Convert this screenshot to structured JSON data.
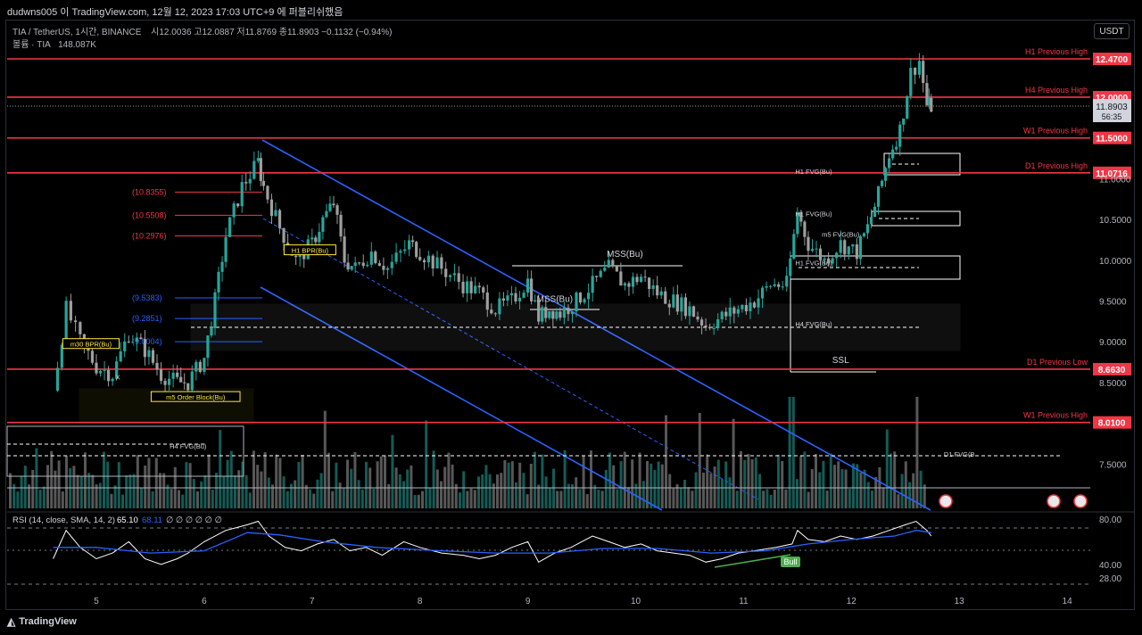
{
  "top_bar": {
    "text": "dudwns005 이 TradingView.com, 12월 12, 2023 17:03 UTC+9 에 퍼블리쉬했음"
  },
  "header": {
    "symbol_line": "TIA / TetherUS, 1시간, BINANCE",
    "ohlc": "시12.0036  고12.0887  저11.8769  종11.8903  −0.1132 (−0.94%)",
    "volume_label": "볼륨 · TIA",
    "volume_value": "148.087K"
  },
  "currency_button": "USDT",
  "footer": {
    "brand": "TradingView"
  },
  "colors": {
    "up": "#26a69a",
    "down": "#9e9e9e",
    "level": "#f23645",
    "channel": "#2962ff",
    "fvg": "#ffffff",
    "rsi": "#ffffff",
    "rsi_ma": "#2962ff",
    "label_yellow": "#ffeb3b"
  },
  "chart_data": [
    {
      "type": "candlestick",
      "title": "TIA / TetherUS, 1시간, BINANCE",
      "x_ticks": [
        "5",
        "6",
        "7",
        "8",
        "9",
        "10",
        "11",
        "12",
        "13",
        "14"
      ],
      "y_ticks": [
        "11.0000",
        "10.5000",
        "10.0000",
        "9.5000",
        "9.0000",
        "8.5000",
        "7.5000"
      ],
      "ylim": [
        7.0,
        12.7
      ],
      "last_price": "11.8903",
      "countdown": "56:35",
      "series": [
        {
          "name": "TIA / TetherUS",
          "close_path": [
            [
              4.6,
              8.4
            ],
            [
              4.72,
              9.4
            ],
            [
              4.85,
              9.0
            ],
            [
              5.0,
              8.7
            ],
            [
              5.15,
              8.6
            ],
            [
              5.3,
              9.1
            ],
            [
              5.45,
              8.9
            ],
            [
              5.6,
              8.6
            ],
            [
              5.75,
              8.5
            ],
            [
              5.85,
              8.5
            ],
            [
              6.0,
              8.8
            ],
            [
              6.1,
              9.5
            ],
            [
              6.2,
              10.3
            ],
            [
              6.35,
              10.9
            ],
            [
              6.5,
              11.2
            ],
            [
              6.55,
              10.9
            ],
            [
              6.7,
              10.4
            ],
            [
              6.85,
              10.0
            ],
            [
              7.0,
              10.2
            ],
            [
              7.1,
              10.5
            ],
            [
              7.2,
              10.7
            ],
            [
              7.3,
              10.0
            ],
            [
              7.4,
              9.9
            ],
            [
              7.55,
              10.1
            ],
            [
              7.7,
              9.9
            ],
            [
              7.9,
              10.2
            ],
            [
              8.0,
              10.1
            ],
            [
              8.2,
              9.9
            ],
            [
              8.4,
              9.7
            ],
            [
              8.55,
              9.6
            ],
            [
              8.7,
              9.4
            ],
            [
              8.85,
              9.5
            ],
            [
              9.0,
              9.75
            ],
            [
              9.1,
              9.3
            ],
            [
              9.2,
              9.4
            ],
            [
              9.3,
              9.35
            ],
            [
              9.45,
              9.5
            ],
            [
              9.6,
              9.7
            ],
            [
              9.75,
              9.9
            ],
            [
              9.9,
              9.7
            ],
            [
              10.05,
              9.8
            ],
            [
              10.2,
              9.6
            ],
            [
              10.35,
              9.5
            ],
            [
              10.5,
              9.4
            ],
            [
              10.65,
              9.2
            ],
            [
              10.8,
              9.3
            ],
            [
              10.95,
              9.4
            ],
            [
              11.1,
              9.5
            ],
            [
              11.25,
              9.7
            ],
            [
              11.4,
              9.7
            ],
            [
              11.5,
              10.6
            ],
            [
              11.6,
              10.2
            ],
            [
              11.75,
              10.0
            ],
            [
              11.9,
              10.2
            ],
            [
              12.05,
              10.1
            ],
            [
              12.15,
              10.4
            ],
            [
              12.25,
              10.8
            ],
            [
              12.35,
              11.3
            ],
            [
              12.45,
              11.6
            ],
            [
              12.55,
              12.3
            ],
            [
              12.63,
              12.45
            ],
            [
              12.7,
              11.9
            ],
            [
              12.74,
              11.89
            ]
          ]
        }
      ],
      "levels": [
        {
          "label": "H1 Previous High",
          "price": "12.4700",
          "value": 12.47
        },
        {
          "label": "H4 Previous High",
          "price": "12.0000",
          "value": 12.0
        },
        {
          "label": "W1 Previous High",
          "price": "11.5000",
          "value": 11.5
        },
        {
          "label": "D1 Previous High",
          "price": "11.0716",
          "value": 11.0716
        },
        {
          "label": "D1 Previous Low",
          "price": "8.6630",
          "value": 8.663
        },
        {
          "label": "W1 Previous High",
          "price": "8.0100",
          "value": 8.01
        }
      ],
      "fib_levels": [
        {
          "text": "(10.8355)",
          "value": 10.8355,
          "color": "#f23645"
        },
        {
          "text": "(10.5508)",
          "value": 10.5508,
          "color": "#f23645"
        },
        {
          "text": "(10.2976)",
          "value": 10.2976,
          "color": "#f23645"
        },
        {
          "text": "(9.5383)",
          "value": 9.5383,
          "color": "#2962ff"
        },
        {
          "text": "(9.2851)",
          "value": 9.2851,
          "color": "#2962ff"
        },
        {
          "text": "(9.0004)",
          "value": 9.0004,
          "color": "#2962ff"
        }
      ],
      "annotations": [
        {
          "text": "H1 FVG(Bu)",
          "x": 11.65,
          "y": 11.07
        },
        {
          "text": "H1 FVG(Bu)",
          "x": 11.65,
          "y": 10.55
        },
        {
          "text": "H1 FVG(Bu)",
          "x": 11.65,
          "y": 9.95
        },
        {
          "text": "H4 FVG(Bu)",
          "x": 11.65,
          "y": 9.2
        },
        {
          "text": "m5 FVG(Bu)",
          "x": 11.9,
          "y": 10.3
        },
        {
          "text": "MSS(Bu)",
          "x": 9.9,
          "y": 10.05
        },
        {
          "text": "MSS(Bu)",
          "x": 9.25,
          "y": 9.5
        },
        {
          "text": "SSL",
          "x": 11.9,
          "y": 8.75
        },
        {
          "text": "H1 BPR(Bu)",
          "x": 6.98,
          "y": 10.1
        },
        {
          "text": "m30 BPR(Bu)",
          "x": 4.95,
          "y": 8.95
        },
        {
          "text": "m5 Order Block(Bu)",
          "x": 5.92,
          "y": 8.3
        },
        {
          "text": "H4 FVG(Bu)",
          "x": 5.85,
          "y": 7.7
        },
        {
          "text": "D1 FVG(B",
          "x": 13.0,
          "y": 7.6
        },
        {
          "text": "X",
          "x": 5.2,
          "y": 8.55
        }
      ]
    },
    {
      "type": "line",
      "title": "RSI (14, close, SMA, 14, 2)",
      "values_label": "65.10",
      "ma_label": "68.11",
      "extra": "∅ ∅ ∅ ∅ ∅ ∅",
      "y_ticks": [
        "80.00",
        "40.00",
        "28.00"
      ],
      "ylim": [
        25,
        85
      ],
      "annotation": "Bull",
      "series": [
        {
          "name": "RSI",
          "points": [
            [
              4.6,
              45
            ],
            [
              4.72,
              70
            ],
            [
              4.85,
              55
            ],
            [
              5.0,
              45
            ],
            [
              5.15,
              50
            ],
            [
              5.3,
              60
            ],
            [
              5.45,
              45
            ],
            [
              5.6,
              40
            ],
            [
              5.75,
              45
            ],
            [
              5.85,
              50
            ],
            [
              6.0,
              60
            ],
            [
              6.2,
              70
            ],
            [
              6.4,
              75
            ],
            [
              6.5,
              78
            ],
            [
              6.6,
              65
            ],
            [
              6.75,
              55
            ],
            [
              6.9,
              52
            ],
            [
              7.05,
              58
            ],
            [
              7.2,
              62
            ],
            [
              7.35,
              52
            ],
            [
              7.5,
              55
            ],
            [
              7.65,
              48
            ],
            [
              7.85,
              60
            ],
            [
              8.0,
              55
            ],
            [
              8.2,
              50
            ],
            [
              8.4,
              48
            ],
            [
              8.55,
              45
            ],
            [
              8.7,
              48
            ],
            [
              8.85,
              55
            ],
            [
              9.0,
              60
            ],
            [
              9.1,
              42
            ],
            [
              9.25,
              50
            ],
            [
              9.4,
              55
            ],
            [
              9.6,
              65
            ],
            [
              9.75,
              60
            ],
            [
              9.9,
              55
            ],
            [
              10.05,
              58
            ],
            [
              10.2,
              52
            ],
            [
              10.35,
              50
            ],
            [
              10.5,
              48
            ],
            [
              10.65,
              42
            ],
            [
              10.8,
              45
            ],
            [
              10.95,
              50
            ],
            [
              11.1,
              52
            ],
            [
              11.3,
              55
            ],
            [
              11.45,
              58
            ],
            [
              11.5,
              70
            ],
            [
              11.6,
              62
            ],
            [
              11.75,
              60
            ],
            [
              11.9,
              65
            ],
            [
              12.05,
              62
            ],
            [
              12.2,
              65
            ],
            [
              12.35,
              70
            ],
            [
              12.5,
              75
            ],
            [
              12.6,
              78
            ],
            [
              12.7,
              70
            ],
            [
              12.74,
              65
            ]
          ]
        },
        {
          "name": "RSI MA",
          "points": [
            [
              4.6,
              55
            ],
            [
              5.0,
              55
            ],
            [
              5.5,
              50
            ],
            [
              6.0,
              52
            ],
            [
              6.4,
              68
            ],
            [
              6.7,
              66
            ],
            [
              7.1,
              60
            ],
            [
              7.6,
              55
            ],
            [
              8.2,
              52
            ],
            [
              8.7,
              50
            ],
            [
              9.2,
              50
            ],
            [
              9.7,
              54
            ],
            [
              10.2,
              54
            ],
            [
              10.7,
              50
            ],
            [
              11.2,
              52
            ],
            [
              11.6,
              58
            ],
            [
              12.0,
              62
            ],
            [
              12.4,
              65
            ],
            [
              12.6,
              70
            ],
            [
              12.74,
              68
            ]
          ]
        }
      ]
    }
  ]
}
